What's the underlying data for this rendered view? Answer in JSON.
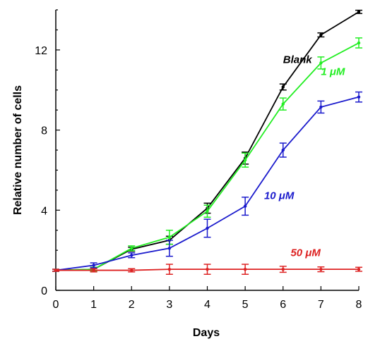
{
  "chart_data": {
    "type": "line",
    "title": "",
    "xlabel": "Days",
    "ylabel": "Relative number of cells",
    "xlim": [
      0,
      8
    ],
    "ylim": [
      0,
      14
    ],
    "xticks": [
      0,
      1,
      2,
      3,
      4,
      5,
      6,
      7,
      8
    ],
    "yticks": [
      0,
      4,
      8,
      12
    ],
    "grid": false,
    "legend": "inline labels",
    "x": [
      0,
      1,
      2,
      3,
      4,
      5,
      6,
      7,
      8
    ],
    "series": [
      {
        "name": "Blank",
        "color": "#000000",
        "values": [
          1.0,
          1.05,
          2.05,
          2.5,
          4.1,
          6.6,
          10.15,
          12.75,
          13.9
        ],
        "errors": [
          0.05,
          0.1,
          0.1,
          0.2,
          0.25,
          0.3,
          0.15,
          0.1,
          0.08
        ]
      },
      {
        "name": "1 μM",
        "color": "#22ee22",
        "values": [
          1.0,
          1.05,
          2.1,
          2.65,
          3.95,
          6.5,
          9.3,
          11.35,
          12.35
        ],
        "errors": [
          0.05,
          0.1,
          0.12,
          0.35,
          0.3,
          0.35,
          0.3,
          0.3,
          0.25
        ]
      },
      {
        "name": "10 μM",
        "color": "#1a1acc",
        "values": [
          1.0,
          1.25,
          1.75,
          2.1,
          3.1,
          4.2,
          7.0,
          9.15,
          9.65
        ],
        "errors": [
          0.05,
          0.12,
          0.12,
          0.4,
          0.45,
          0.45,
          0.35,
          0.3,
          0.25
        ]
      },
      {
        "name": "50 μM",
        "color": "#dd2222",
        "values": [
          1.0,
          1.0,
          1.0,
          1.05,
          1.05,
          1.05,
          1.05,
          1.05,
          1.05
        ],
        "errors": [
          0.05,
          0.08,
          0.08,
          0.25,
          0.25,
          0.25,
          0.15,
          0.12,
          0.1
        ]
      }
    ],
    "series_labels": [
      {
        "text": "Blank",
        "color": "#000000",
        "x": 6.0,
        "y": 11.35
      },
      {
        "text": "1 μM",
        "color": "#22ee22",
        "x": 7.0,
        "y": 10.75
      },
      {
        "text": "10 μM",
        "color": "#1a1acc",
        "x": 5.5,
        "y": 4.55
      },
      {
        "text": "50 μM",
        "color": "#dd2222",
        "x": 6.2,
        "y": 1.7
      }
    ]
  }
}
